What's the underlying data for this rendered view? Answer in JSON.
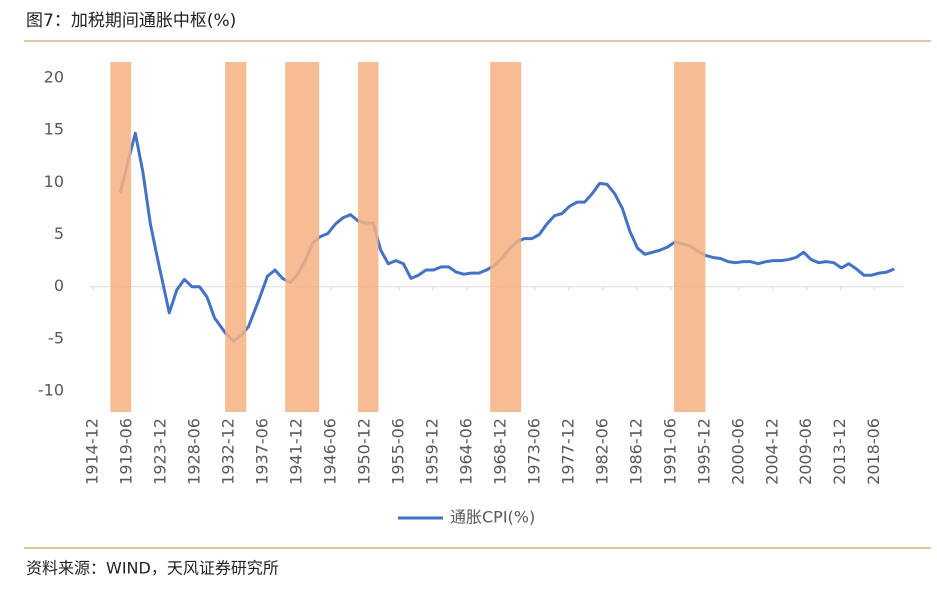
{
  "chart_data": {
    "type": "line",
    "title": "图7：加税期间通胀中枢(%)",
    "source": "资料来源：WIND，天风证券研究所",
    "x": [
      1918.5,
      1920.5,
      1921.5,
      1922.5,
      1923.5,
      1925,
      1926,
      1927,
      1928,
      1929,
      1930,
      1931,
      1932.5,
      1933.5,
      1934.5,
      1935.5,
      1937,
      1938,
      1939,
      1940,
      1941,
      1942,
      1943,
      1944,
      1945,
      1946,
      1947,
      1948,
      1949,
      1950,
      1951,
      1952,
      1953,
      1954,
      1955,
      1956,
      1957,
      1958,
      1959,
      1960,
      1961,
      1962,
      1963,
      1964,
      1965,
      1966,
      1967,
      1968,
      1969,
      1970,
      1971,
      1972,
      1973,
      1974,
      1975,
      1976,
      1977,
      1978,
      1979,
      1980,
      1981,
      1982,
      1983,
      1984,
      1985,
      1986,
      1987,
      1988,
      1989,
      1990,
      1991,
      1992,
      1993,
      1994,
      1995,
      1996,
      1997,
      1998,
      1999,
      2000,
      2001,
      2002,
      2003,
      2004,
      2005,
      2006,
      2007,
      2008,
      2009,
      2010,
      2011,
      2012,
      2013,
      2014,
      2015,
      2016,
      2017,
      2018,
      2019,
      2020,
      2021
    ],
    "series": [
      {
        "name": "通胀CPI(%)",
        "color": "#4472c4",
        "values": [
          9,
          14.7,
          11,
          6,
          2.5,
          -2.5,
          -0.3,
          0.7,
          0,
          0,
          -1,
          -3,
          -4.5,
          -5.2,
          -4.7,
          -3.8,
          -1,
          1,
          1.6,
          0.8,
          0.4,
          1.2,
          2.5,
          4.2,
          4.8,
          5.1,
          6,
          6.6,
          6.9,
          6.3,
          6.1,
          6.1,
          3.5,
          2.2,
          2.5,
          2.2,
          0.8,
          1.1,
          1.6,
          1.6,
          1.9,
          1.9,
          1.4,
          1.2,
          1.3,
          1.3,
          1.6,
          2,
          2.7,
          3.6,
          4.3,
          4.6,
          4.6,
          5,
          6,
          6.8,
          7,
          7.7,
          8.1,
          8.1,
          8.9,
          9.9,
          9.8,
          8.9,
          7.5,
          5.3,
          3.7,
          3.1,
          3.3,
          3.5,
          3.8,
          4.3,
          4.1,
          3.9,
          3.4,
          3,
          2.8,
          2.7,
          2.4,
          2.3,
          2.4,
          2.4,
          2.2,
          2.4,
          2.5,
          2.5,
          2.6,
          2.8,
          3.3,
          2.6,
          2.3,
          2.4,
          2.3,
          1.8,
          2.2,
          1.7,
          1.1,
          1.1,
          1.3,
          1.4,
          1.7
        ]
      }
    ],
    "bands": [
      [
        1917.2,
        1919.95
      ],
      [
        1932.4,
        1935.2
      ],
      [
        1940.35,
        1944.85
      ],
      [
        1950.0,
        1952.7
      ],
      [
        1967.5,
        1971.6
      ],
      [
        1991.85,
        1996.0
      ]
    ],
    "band_color": "#f4b183",
    "xlim": [
      1914.5,
      2022.3
    ],
    "xticks": [
      {
        "value": 1914.92,
        "label": "1914-12"
      },
      {
        "value": 1919.42,
        "label": "1919-06"
      },
      {
        "value": 1923.92,
        "label": "1923-12"
      },
      {
        "value": 1928.42,
        "label": "1928-06"
      },
      {
        "value": 1932.92,
        "label": "1932-12"
      },
      {
        "value": 1937.42,
        "label": "1937-06"
      },
      {
        "value": 1941.92,
        "label": "1941-12"
      },
      {
        "value": 1946.42,
        "label": "1946-06"
      },
      {
        "value": 1950.92,
        "label": "1950-12"
      },
      {
        "value": 1955.42,
        "label": "1955-06"
      },
      {
        "value": 1959.92,
        "label": "1959-12"
      },
      {
        "value": 1964.42,
        "label": "1964-06"
      },
      {
        "value": 1968.92,
        "label": "1968-12"
      },
      {
        "value": 1973.42,
        "label": "1973-06"
      },
      {
        "value": 1977.92,
        "label": "1977-12"
      },
      {
        "value": 1982.42,
        "label": "1982-06"
      },
      {
        "value": 1986.92,
        "label": "1986-12"
      },
      {
        "value": 1991.42,
        "label": "1991-06"
      },
      {
        "value": 1995.92,
        "label": "1995-12"
      },
      {
        "value": 2000.42,
        "label": "2000-06"
      },
      {
        "value": 2004.92,
        "label": "2004-12"
      },
      {
        "value": 2009.42,
        "label": "2009-06"
      },
      {
        "value": 2013.92,
        "label": "2013-12"
      },
      {
        "value": 2018.42,
        "label": "2018-06"
      }
    ],
    "ylim": [
      -12,
      22
    ],
    "yticks": [
      -10,
      -5,
      0,
      5,
      10,
      15,
      20
    ],
    "legend": "bottom"
  }
}
